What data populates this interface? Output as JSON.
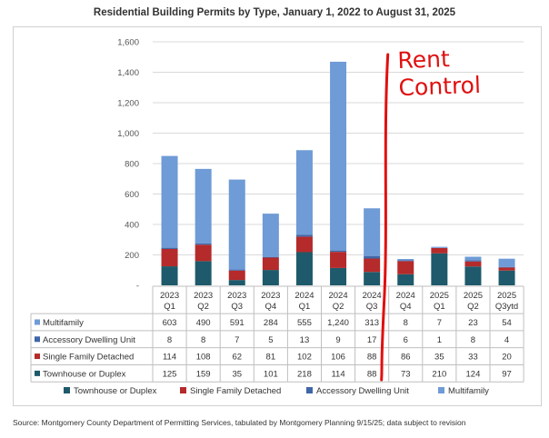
{
  "chart_data": {
    "type": "bar",
    "stacked": true,
    "title": "Residential Building Permits by Type, January 1, 2022 to August 31, 2025",
    "categories": [
      [
        "2023",
        "Q1"
      ],
      [
        "2023",
        "Q2"
      ],
      [
        "2023",
        "Q3"
      ],
      [
        "2023",
        "Q4"
      ],
      [
        "2024",
        "Q1"
      ],
      [
        "2024",
        "Q2"
      ],
      [
        "2024",
        "Q3"
      ],
      [
        "2024",
        "Q4"
      ],
      [
        "2025",
        "Q1"
      ],
      [
        "2025",
        "Q2"
      ],
      [
        "2025",
        "Q3ytd"
      ]
    ],
    "yticks": [
      "-",
      "200",
      "400",
      "600",
      "800",
      "1,000",
      "1,200",
      "1,400",
      "1,600"
    ],
    "ylim": [
      0,
      1600
    ],
    "ystep": 200,
    "grid": true,
    "legend_position": "bottom",
    "series": [
      {
        "name": "Townhouse or Duplex",
        "color": "#1e5a6b",
        "values": [
          125,
          159,
          35,
          101,
          218,
          114,
          88,
          73,
          210,
          124,
          97
        ],
        "display": [
          "125",
          "159",
          "35",
          "101",
          "218",
          "114",
          "88",
          "73",
          "210",
          "124",
          "97"
        ]
      },
      {
        "name": "Single Family Detached",
        "color": "#b52a2a",
        "values": [
          114,
          108,
          62,
          81,
          102,
          106,
          88,
          86,
          35,
          33,
          20
        ],
        "display": [
          "114",
          "108",
          "62",
          "81",
          "102",
          "106",
          "88",
          "86",
          "35",
          "33",
          "20"
        ]
      },
      {
        "name": "Accessory Dwelling Unit",
        "color": "#3f66a8",
        "values": [
          8,
          8,
          7,
          5,
          13,
          9,
          17,
          6,
          1,
          8,
          4
        ],
        "display": [
          "8",
          "8",
          "7",
          "5",
          "13",
          "9",
          "17",
          "6",
          "1",
          "8",
          "4"
        ]
      },
      {
        "name": "Multifamily",
        "color": "#6f9bd6",
        "values": [
          603,
          490,
          591,
          284,
          555,
          1240,
          313,
          8,
          7,
          23,
          54
        ],
        "display": [
          "603",
          "490",
          "591",
          "284",
          "555",
          "1,240",
          "313",
          "8",
          "7",
          "23",
          "54"
        ]
      }
    ],
    "table_row_order": [
      3,
      2,
      1,
      0
    ]
  },
  "source": "Source: Montgomery County Department of Permitting Services, tabulated by Montgomery Planning 9/15/25; data subject to revision",
  "annotation": {
    "lines": [
      "Rent",
      "Control"
    ],
    "color": "#e01010"
  }
}
